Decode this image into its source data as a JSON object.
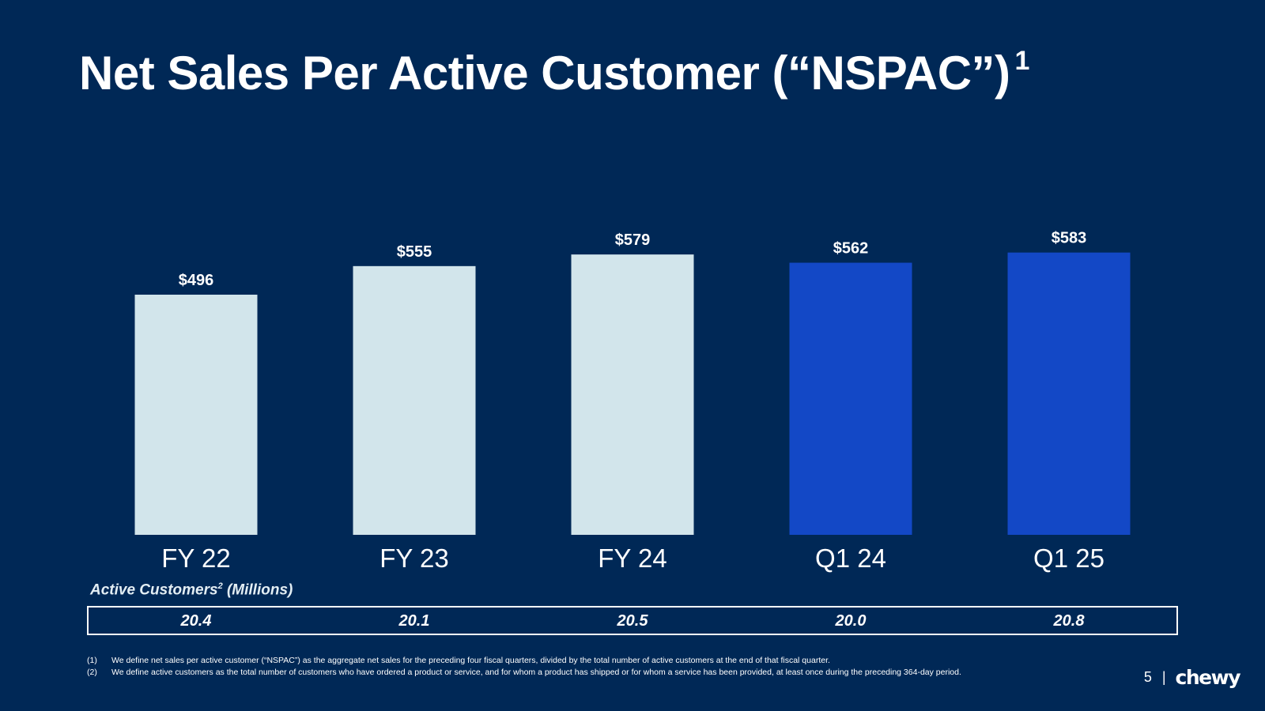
{
  "slide": {
    "title": "Net Sales Per Active Customer (“NSPAC”)",
    "title_superscript": "1",
    "page_number": "5",
    "separator": "|",
    "logo_text": "chewy"
  },
  "colors": {
    "background": "#002856",
    "bar_light": "#d2e5eb",
    "bar_blue": "#1348c6"
  },
  "chart_data": {
    "type": "bar",
    "title": "Net Sales Per Active Customer (“NSPAC”)",
    "categories": [
      "FY 22",
      "FY 23",
      "FY 24",
      "Q1 24",
      "Q1 25"
    ],
    "values": [
      496,
      555,
      579,
      562,
      583
    ],
    "value_labels": [
      "$496",
      "$555",
      "$579",
      "$562",
      "$583"
    ],
    "bar_colors": [
      "#d2e5eb",
      "#d2e5eb",
      "#d2e5eb",
      "#1348c6",
      "#1348c6"
    ],
    "ylim": [
      0,
      620
    ],
    "xlabel": "",
    "ylabel": "",
    "grid": false
  },
  "active_customers": {
    "label": "Active Customers",
    "label_superscript": "2",
    "label_suffix": " (Millions)",
    "values": [
      "20.4",
      "20.1",
      "20.5",
      "20.0",
      "20.8"
    ]
  },
  "footnotes": [
    {
      "num": "(1)",
      "text": "We define net sales per active customer (“NSPAC”) as the aggregate net sales for the preceding four fiscal quarters, divided by the total number of active customers at the end of that fiscal quarter."
    },
    {
      "num": "(2)",
      "text": "We define active customers as the total number of customers who have ordered a product or service, and for whom a product has shipped or for whom a service has been provided, at least once during the preceding 364-day period."
    }
  ]
}
